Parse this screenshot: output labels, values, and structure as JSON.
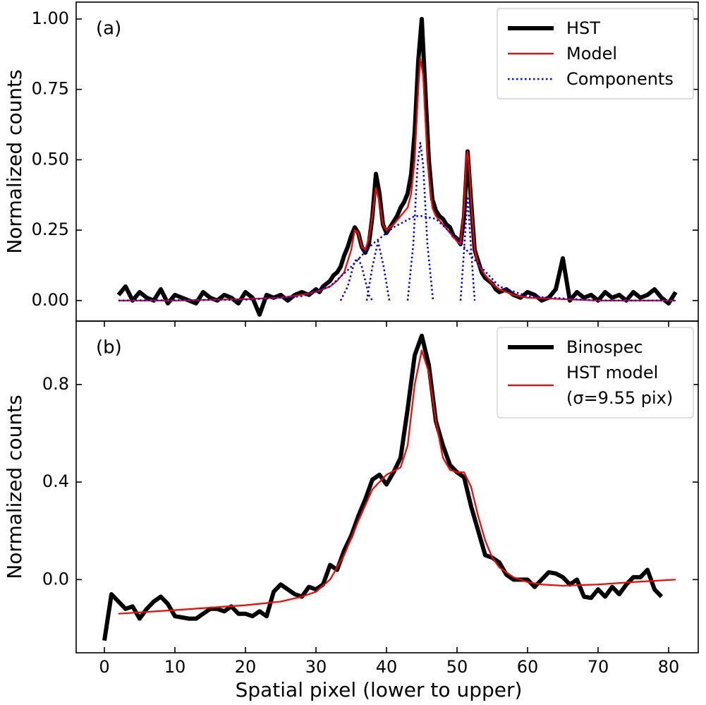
{
  "chart_data": [
    {
      "type": "line",
      "label": "(a)",
      "ylabel": "Normalized counts",
      "legend": "upper right",
      "xlim": [
        -4,
        84.2
      ],
      "ylim": [
        -0.073,
        1.06
      ],
      "yticks": [
        {
          "value": 0,
          "label": "0.00"
        },
        {
          "value": 0.25,
          "label": "0.25"
        },
        {
          "value": 0.5,
          "label": "0.50"
        },
        {
          "value": 0.75,
          "label": "0.75"
        },
        {
          "value": 1,
          "label": "1.00"
        }
      ],
      "series": [
        {
          "name": "HST",
          "color": "#000000",
          "linestyle": "solid",
          "x": [
            2,
            3,
            4,
            5,
            6,
            7,
            8,
            9,
            10,
            11,
            12,
            13,
            14,
            15,
            16,
            17,
            18,
            19,
            20,
            21,
            22,
            23,
            24,
            25,
            26,
            27,
            28,
            29,
            30,
            30.5,
            31,
            31.5,
            32,
            32.5,
            33,
            33.5,
            34,
            34.5,
            35,
            35.5,
            36,
            36.5,
            37,
            37.5,
            38,
            38.5,
            39,
            39.5,
            40,
            40.5,
            41,
            41.5,
            42,
            42.5,
            43,
            43.5,
            44,
            44.5,
            45,
            45.5,
            46,
            46.5,
            47,
            47.5,
            48,
            48.5,
            49,
            49.5,
            50,
            50.5,
            51,
            51.5,
            52,
            52.5,
            53,
            53.5,
            54,
            54.5,
            55,
            55.5,
            56,
            57,
            58,
            59,
            60,
            61,
            62,
            63,
            64,
            65,
            66,
            67,
            68,
            69,
            70,
            71,
            72,
            73,
            74,
            75,
            76,
            77,
            78,
            79,
            80,
            81
          ],
          "values": [
            0.02,
            0.05,
            0.0,
            0.03,
            0.01,
            0.0,
            0.04,
            -0.01,
            0.02,
            0.01,
            0.0,
            -0.01,
            0.03,
            0.01,
            0.0,
            0.02,
            0.01,
            -0.01,
            0.03,
            0.01,
            -0.05,
            0.02,
            0.01,
            0.02,
            0.0,
            0.02,
            0.03,
            0.02,
            0.04,
            0.03,
            0.05,
            0.06,
            0.07,
            0.09,
            0.1,
            0.12,
            0.16,
            0.19,
            0.23,
            0.26,
            0.24,
            0.19,
            0.17,
            0.2,
            0.3,
            0.45,
            0.38,
            0.27,
            0.24,
            0.26,
            0.28,
            0.3,
            0.33,
            0.35,
            0.38,
            0.45,
            0.6,
            0.85,
            1.0,
            0.75,
            0.5,
            0.36,
            0.32,
            0.3,
            0.29,
            0.27,
            0.26,
            0.23,
            0.22,
            0.2,
            0.3,
            0.53,
            0.35,
            0.18,
            0.14,
            0.1,
            0.08,
            0.07,
            0.06,
            0.04,
            0.03,
            0.04,
            0.02,
            0.01,
            0.03,
            0.02,
            0.0,
            0.01,
            0.04,
            0.15,
            0.0,
            0.03,
            0.01,
            0.02,
            0.0,
            0.03,
            0.01,
            0.02,
            0.0,
            0.03,
            0.01,
            0.02,
            0.04,
            0.01,
            -0.01,
            0.03
          ]
        },
        {
          "name": "Model",
          "color": "#ff0000",
          "linestyle": "solid",
          "x": [
            2,
            10,
            20,
            25,
            28,
            30,
            32,
            33,
            34,
            35,
            35.5,
            36,
            36.5,
            37,
            37.5,
            38,
            38.5,
            39,
            39.5,
            40,
            41,
            42,
            43,
            43.5,
            44,
            44.5,
            44.8,
            45.2,
            45.5,
            46,
            46.5,
            47,
            48,
            49,
            50,
            50.5,
            51,
            51.3,
            51.5,
            51.8,
            52,
            52.5,
            53,
            54,
            55,
            56,
            58,
            60,
            65,
            70,
            81
          ],
          "values": [
            0,
            0,
            0.005,
            0.01,
            0.02,
            0.03,
            0.05,
            0.07,
            0.1,
            0.18,
            0.25,
            0.24,
            0.19,
            0.18,
            0.22,
            0.3,
            0.4,
            0.35,
            0.27,
            0.25,
            0.27,
            0.3,
            0.33,
            0.38,
            0.5,
            0.75,
            0.86,
            0.8,
            0.65,
            0.45,
            0.33,
            0.3,
            0.27,
            0.24,
            0.21,
            0.2,
            0.33,
            0.5,
            0.53,
            0.45,
            0.35,
            0.18,
            0.13,
            0.09,
            0.06,
            0.04,
            0.02,
            0.01,
            0.005,
            0,
            0
          ]
        },
        {
          "name": "Components",
          "color": "#0000ee",
          "linestyle": "dotted",
          "pieces": [
            {
              "x": [
                2,
                20,
                28,
                32,
                35,
                38,
                41,
                44,
                45,
                47,
                50,
                53,
                56,
                60,
                70,
                81
              ],
              "values": [
                0,
                0.003,
                0.015,
                0.05,
                0.12,
                0.2,
                0.26,
                0.3,
                0.3,
                0.29,
                0.22,
                0.13,
                0.05,
                0.015,
                0,
                0
              ]
            },
            {
              "x": [
                33.5,
                34.5,
                35.5,
                36,
                36.5,
                37.5,
                38
              ],
              "values": [
                0,
                0.05,
                0.14,
                0.15,
                0.12,
                0.02,
                0
              ]
            },
            {
              "x": [
                37.2,
                38,
                38.8,
                39.6,
                40.4
              ],
              "values": [
                0,
                0.12,
                0.21,
                0.12,
                0
              ]
            },
            {
              "x": [
                43,
                43.8,
                44.4,
                44.8,
                45.2,
                45.8,
                46.6
              ],
              "values": [
                0,
                0.2,
                0.48,
                0.56,
                0.48,
                0.2,
                0
              ]
            },
            {
              "x": [
                50.5,
                51,
                51.5,
                52,
                52.5
              ],
              "values": [
                0,
                0.18,
                0.37,
                0.18,
                0
              ]
            }
          ]
        }
      ]
    },
    {
      "type": "line",
      "label": "(b)",
      "ylabel": "Normalized counts",
      "xlabel": "Spatial pixel (lower to upper)",
      "legend": "upper right",
      "xlim": [
        -4,
        84.2
      ],
      "ylim": [
        -0.3,
        1.06
      ],
      "xticks": [
        0,
        10,
        20,
        30,
        40,
        50,
        60,
        70,
        80
      ],
      "yticks": [
        {
          "value": 0,
          "label": "0.0"
        },
        {
          "value": 0.4,
          "label": "0.4"
        },
        {
          "value": 0.8,
          "label": "0.8"
        }
      ],
      "series": [
        {
          "name": "Binospec",
          "color": "#000000",
          "linestyle": "solid",
          "x": [
            0,
            1,
            2,
            3,
            4,
            5,
            6,
            7,
            8,
            9,
            10,
            11,
            12,
            13,
            14,
            15,
            16,
            17,
            18,
            19,
            20,
            21,
            22,
            23,
            24,
            25,
            26,
            27,
            28,
            29,
            30,
            31,
            32,
            33,
            34,
            35,
            36,
            37,
            38,
            39,
            40,
            41,
            42,
            43,
            44,
            45,
            46,
            47,
            48,
            49,
            50,
            51,
            52,
            53,
            54,
            55,
            56,
            57,
            58,
            59,
            60,
            61,
            62,
            63,
            64,
            65,
            66,
            67,
            68,
            69,
            70,
            71,
            72,
            73,
            74,
            75,
            76,
            77,
            78,
            79
          ],
          "values": [
            -0.25,
            -0.06,
            -0.09,
            -0.12,
            -0.11,
            -0.16,
            -0.12,
            -0.09,
            -0.07,
            -0.1,
            -0.15,
            -0.155,
            -0.16,
            -0.16,
            -0.14,
            -0.12,
            -0.12,
            -0.13,
            -0.11,
            -0.14,
            -0.14,
            -0.15,
            -0.13,
            -0.15,
            -0.05,
            -0.02,
            -0.04,
            -0.06,
            -0.07,
            -0.03,
            -0.04,
            -0.02,
            0.06,
            0.04,
            0.12,
            0.18,
            0.26,
            0.33,
            0.41,
            0.43,
            0.39,
            0.44,
            0.5,
            0.7,
            0.92,
            1.0,
            0.88,
            0.65,
            0.55,
            0.47,
            0.44,
            0.42,
            0.3,
            0.2,
            0.1,
            0.09,
            0.07,
            0.02,
            0.0,
            0.0,
            0.0,
            -0.03,
            0.0,
            0.03,
            0.025,
            0.01,
            -0.02,
            0.0,
            -0.07,
            -0.075,
            -0.04,
            -0.07,
            -0.03,
            -0.06,
            -0.02,
            0.01,
            0.01,
            0.04,
            -0.04,
            -0.07
          ]
        },
        {
          "name": "HST model\n(σ=9.55 pix)",
          "color": "#ff0000",
          "linestyle": "solid",
          "x": [
            2,
            10,
            20,
            25,
            28,
            30,
            32,
            34,
            36,
            38,
            40,
            42,
            43,
            44,
            45,
            46,
            47,
            48,
            49,
            50,
            51,
            52,
            53,
            54,
            55,
            56,
            58,
            60,
            62,
            65,
            70,
            75,
            81
          ],
          "values": [
            -0.14,
            -0.125,
            -0.105,
            -0.09,
            -0.07,
            -0.05,
            0.0,
            0.1,
            0.24,
            0.37,
            0.43,
            0.46,
            0.55,
            0.8,
            0.94,
            0.85,
            0.65,
            0.5,
            0.45,
            0.44,
            0.44,
            0.38,
            0.26,
            0.16,
            0.09,
            0.05,
            0.01,
            -0.01,
            -0.02,
            -0.025,
            -0.02,
            -0.01,
            0.0
          ]
        }
      ]
    }
  ]
}
